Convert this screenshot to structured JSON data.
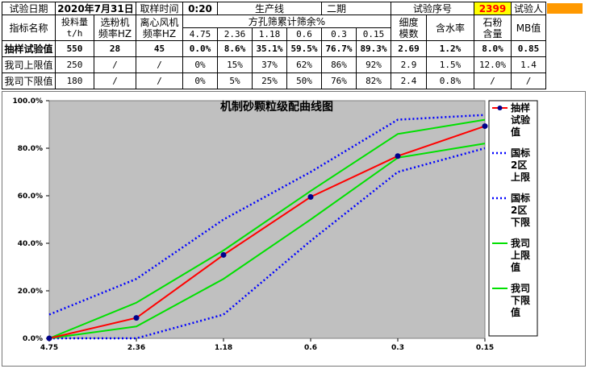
{
  "header": {
    "date_label": "试验日期",
    "date_value": "2020年7月31日",
    "sample_time_label": "取样时间",
    "sample_time_value": "0:20",
    "line_label": "生产线",
    "line_value": "二期",
    "serial_label": "试验序号",
    "serial_value": "2399",
    "tester_label": "试验人"
  },
  "columns": {
    "name": "指标名称",
    "feed_rate": "投料量\nt/h",
    "separator_freq": "选粉机\n频率HZ",
    "fan_freq": "离心风机\n频率HZ",
    "sieve_group": "方孔筛累计筛余%",
    "sieves": [
      "4.75",
      "2.36",
      "1.18",
      "0.6",
      "0.3",
      "0.15"
    ],
    "fineness": "细度\n模数",
    "moisture": "含水率",
    "stone_powder": "石粉\n含量",
    "mb": "MB值"
  },
  "rows": [
    {
      "name": "抽样试验值",
      "values": [
        "550",
        "28",
        "45",
        "0.0%",
        "8.6%",
        "35.1%",
        "59.5%",
        "76.7%",
        "89.3%",
        "2.69",
        "1.2%",
        "8.0%",
        "0.85"
      ]
    },
    {
      "name": "我司上限值",
      "values": [
        "250",
        "/",
        "/",
        "0%",
        "15%",
        "37%",
        "62%",
        "86%",
        "92%",
        "2.9",
        "1.5%",
        "12.0%",
        "1.4"
      ]
    },
    {
      "name": "我司下限值",
      "values": [
        "180",
        "/",
        "/",
        "0%",
        "5%",
        "25%",
        "50%",
        "76%",
        "82%",
        "2.4",
        "0.8%",
        "/",
        "/"
      ]
    }
  ],
  "colors": {
    "sample": "#ff0000",
    "sample_marker": "#00008b",
    "national": "#0000ff",
    "company": "#00e000",
    "plot_bg": "#c0c0c0",
    "serial_bg": "#ffff00",
    "tester_redact": "#ff9900"
  },
  "chart_data": {
    "type": "line",
    "title": "机制砂颗粒级配曲线图",
    "categories": [
      "4.75",
      "2.36",
      "1.18",
      "0.6",
      "0.3",
      "0.15"
    ],
    "ylim": [
      0,
      100
    ],
    "yticks": [
      "0.0%",
      "20.0%",
      "40.0%",
      "60.0%",
      "80.0%",
      "100.0%"
    ],
    "grid": false,
    "legend_position": "right",
    "series": [
      {
        "name": "抽样试验值",
        "style": "solid",
        "color": "#ff0000",
        "values": [
          0.0,
          8.6,
          35.1,
          59.5,
          76.7,
          89.3
        ]
      },
      {
        "name": "国标2区上限",
        "style": "dotted",
        "color": "#0000ff",
        "values": [
          10,
          25,
          50,
          70,
          92,
          94
        ]
      },
      {
        "name": "国标2区下限",
        "style": "dotted",
        "color": "#0000ff",
        "values": [
          0,
          0,
          10,
          41,
          70,
          80
        ]
      },
      {
        "name": "我司上限值",
        "style": "solid",
        "color": "#00e000",
        "values": [
          0,
          15,
          37,
          62,
          86,
          92
        ]
      },
      {
        "name": "我司下限值",
        "style": "solid",
        "color": "#00e000",
        "values": [
          0,
          5,
          25,
          50,
          76,
          82
        ]
      }
    ]
  }
}
